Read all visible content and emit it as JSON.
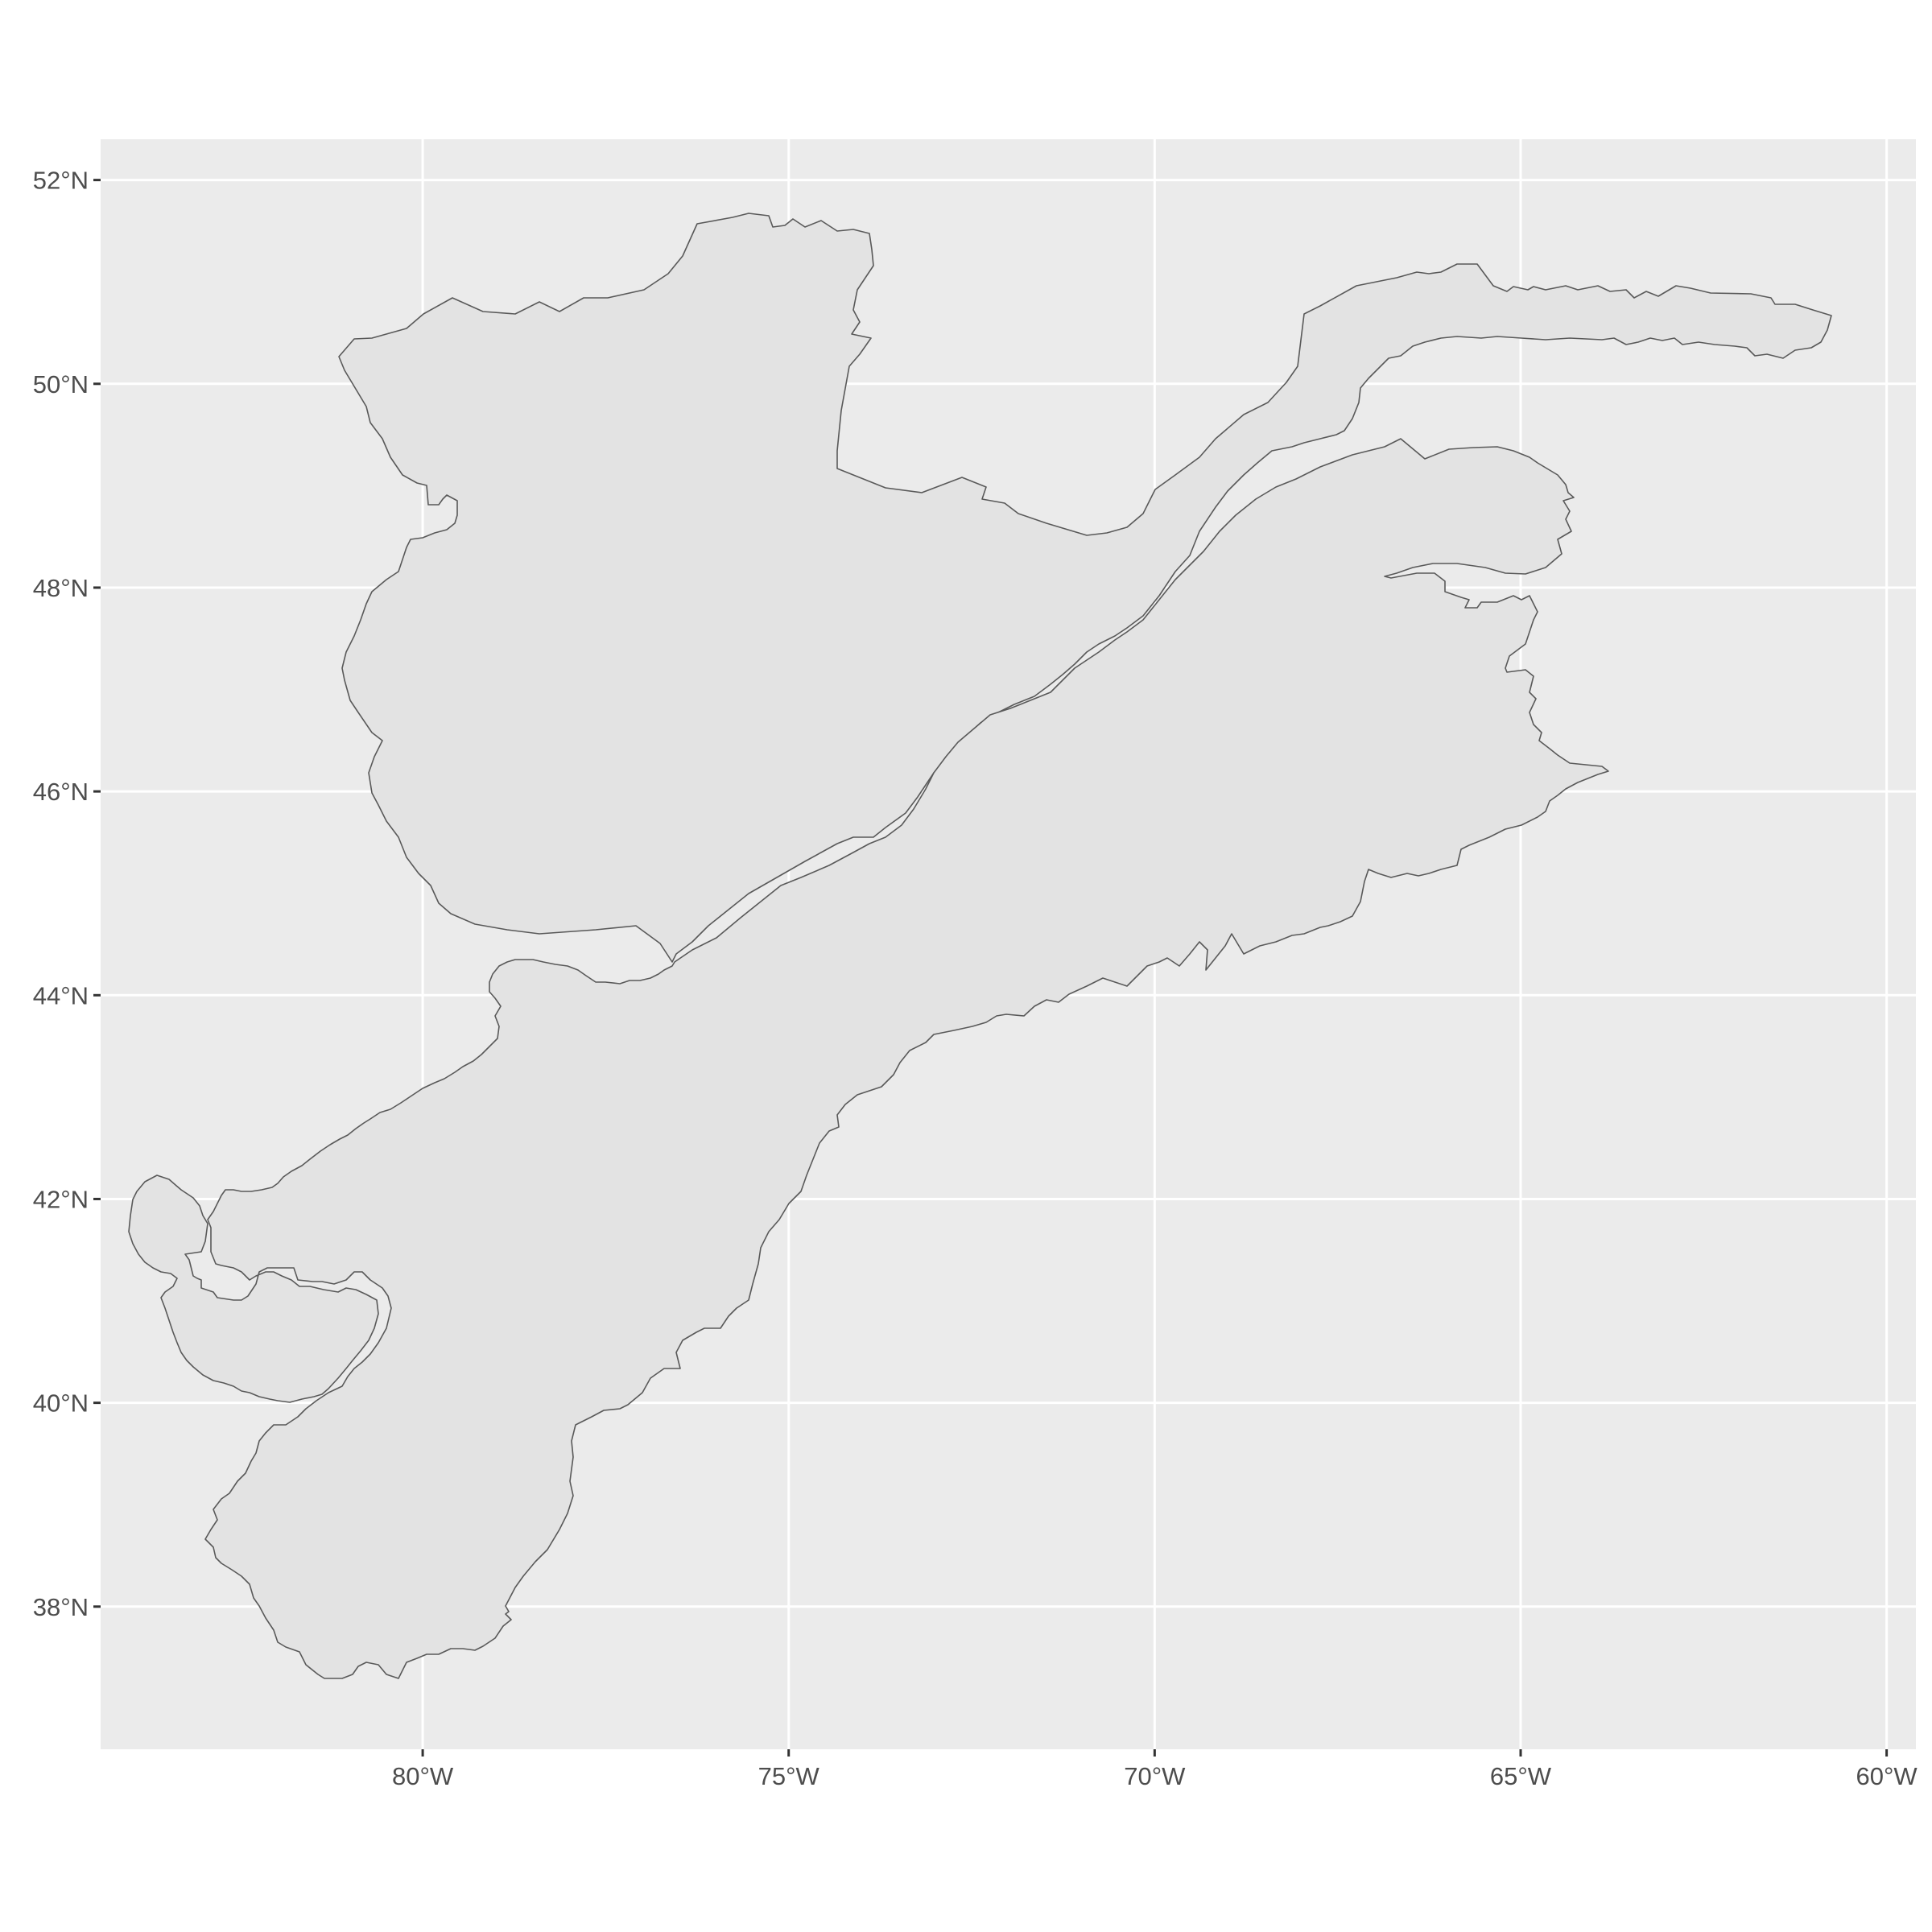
{
  "map": {
    "panel_background": "#ebebeb",
    "grid_color": "#ffffff",
    "region_fill": "#e3e3e3",
    "region_stroke": "#595959",
    "lon_range": [
      -84.4,
      -59.6
    ],
    "lat_range": [
      36.6,
      52.4
    ],
    "x_ticks": [
      {
        "value": -80,
        "label": "80°W"
      },
      {
        "value": -75,
        "label": "75°W"
      },
      {
        "value": -70,
        "label": "70°W"
      },
      {
        "value": -65,
        "label": "65°W"
      },
      {
        "value": -60,
        "label": "60°W"
      }
    ],
    "y_ticks": [
      {
        "value": 52,
        "label": "52°N"
      },
      {
        "value": 50,
        "label": "50°N"
      },
      {
        "value": 48,
        "label": "48°N"
      },
      {
        "value": 46,
        "label": "46°N"
      },
      {
        "value": 44,
        "label": "44°N"
      },
      {
        "value": 42,
        "label": "42°N"
      },
      {
        "value": 40,
        "label": "40°N"
      },
      {
        "value": 38,
        "label": "38°N"
      }
    ]
  }
}
